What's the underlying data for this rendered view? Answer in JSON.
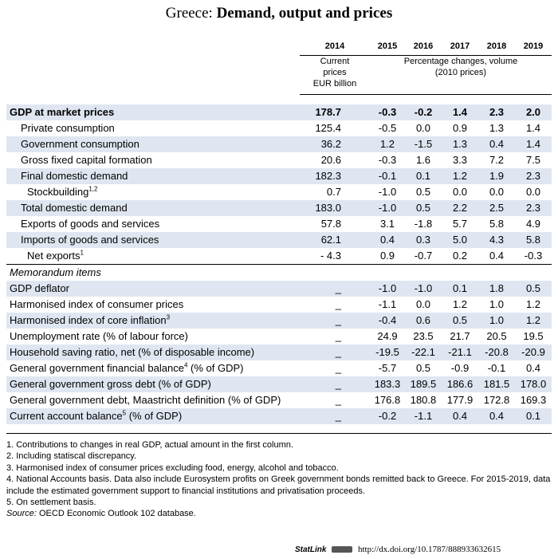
{
  "title": {
    "country": "Greece:",
    "subject": "Demand, output and prices"
  },
  "header": {
    "years": [
      "2014",
      "2015",
      "2016",
      "2017",
      "2018",
      "2019"
    ],
    "col1_l1": "Current",
    "col1_l2": "prices",
    "col1_l3": "EUR billion",
    "pct_l1": "Percentage changes, volume",
    "pct_l2": "(2010 prices)"
  },
  "rows": [
    {
      "label": "GDP at market prices",
      "sup": "",
      "v": [
        "178.7",
        "-0.3",
        "-0.2",
        "1.4",
        "2.3",
        "2.0"
      ]
    },
    {
      "label": "Private consumption",
      "sup": "",
      "v": [
        "125.4",
        "-0.5",
        "0.0",
        "0.9",
        "1.3",
        "1.4"
      ]
    },
    {
      "label": "Government consumption",
      "sup": "",
      "v": [
        "36.2",
        "1.2",
        "-1.5",
        "1.3",
        "0.4",
        "1.4"
      ]
    },
    {
      "label": "Gross fixed capital formation",
      "sup": "",
      "v": [
        "20.6",
        "-0.3",
        "1.6",
        "3.3",
        "7.2",
        "7.5"
      ]
    },
    {
      "label": "Final domestic demand",
      "sup": "",
      "v": [
        "182.3",
        "-0.1",
        "0.1",
        "1.2",
        "1.9",
        "2.3"
      ]
    },
    {
      "label": "Stockbuilding",
      "sup": "1,2",
      "v": [
        "0.7",
        "-1.0",
        "0.5",
        "0.0",
        "0.0",
        "0.0"
      ]
    },
    {
      "label": "Total domestic demand",
      "sup": "",
      "v": [
        "183.0",
        "-1.0",
        "0.5",
        "2.2",
        "2.5",
        "2.3"
      ]
    },
    {
      "label": "Exports of goods and services",
      "sup": "",
      "v": [
        "57.8",
        "3.1",
        "-1.8",
        "5.7",
        "5.8",
        "4.9"
      ]
    },
    {
      "label": "Imports of goods and services",
      "sup": "",
      "v": [
        "62.1",
        "0.4",
        "0.3",
        "5.0",
        "4.3",
        "5.8"
      ]
    },
    {
      "label": "Net exports",
      "sup": "1",
      "v": [
        "- 4.3",
        "0.9",
        "-0.7",
        "0.2",
        "0.4",
        "-0.3"
      ]
    }
  ],
  "memo": {
    "heading": "Memorandum items",
    "rows": [
      {
        "label": "GDP deflator",
        "sup": "",
        "v": [
          "_",
          "-1.0",
          "-1.0",
          "0.1",
          "1.8",
          "0.5"
        ]
      },
      {
        "label": "Harmonised index of consumer prices",
        "sup": "",
        "v": [
          "_",
          "-1.1",
          "0.0",
          "1.2",
          "1.0",
          "1.2"
        ]
      },
      {
        "label": "Harmonised index of core inflation",
        "sup": "3",
        "v": [
          "_",
          "-0.4",
          "0.6",
          "0.5",
          "1.0",
          "1.2"
        ]
      },
      {
        "label": "Unemployment rate (% of labour force)",
        "sup": "",
        "v": [
          "_",
          "24.9",
          "23.5",
          "21.7",
          "20.5",
          "19.5"
        ]
      },
      {
        "label": "Household saving ratio, net (% of disposable income)",
        "sup": "",
        "v": [
          "_",
          "-19.5",
          "-22.1",
          "-21.1",
          "-20.8",
          "-20.9"
        ]
      },
      {
        "label": "General government financial balance",
        "sup": "4",
        "suffix": " (% of GDP)",
        "v": [
          "_",
          "-5.7",
          "0.5",
          "-0.9",
          "-0.1",
          "0.4"
        ]
      },
      {
        "label": "General government gross debt (% of GDP)",
        "sup": "",
        "v": [
          "_",
          "183.3",
          "189.5",
          "186.6",
          "181.5",
          "178.0"
        ]
      },
      {
        "label": "General government debt, Maastricht definition (% of GDP)",
        "sup": "",
        "v": [
          "_",
          "176.8",
          "180.8",
          "177.9",
          "172.8",
          "169.3"
        ]
      },
      {
        "label": "Current account balance",
        "sup": "5",
        "suffix": " (% of GDP)",
        "v": [
          "_",
          "-0.2",
          "-1.1",
          "0.4",
          "0.4",
          "0.1"
        ]
      }
    ]
  },
  "notes": [
    "1. Contributions to changes in real GDP, actual amount in the first column.",
    "2. Including statiscal discrepancy.",
    "3. Harmonised index of consumer prices excluding food, energy, alcohol and tobacco.",
    "4. National Accounts basis. Data also include Eurosystem profits on Greek government bonds remitted back to Greece. For 2015-2019, data include the estimated government support to financial institutions and privatisation proceeds.",
    "5. On settlement basis."
  ],
  "source": {
    "label": "Source:",
    "text": " OECD Economic Outlook 102 database."
  },
  "statlink": {
    "label": "StatLink",
    "url": "http://dx.doi.org/10.1787/888933632615"
  }
}
